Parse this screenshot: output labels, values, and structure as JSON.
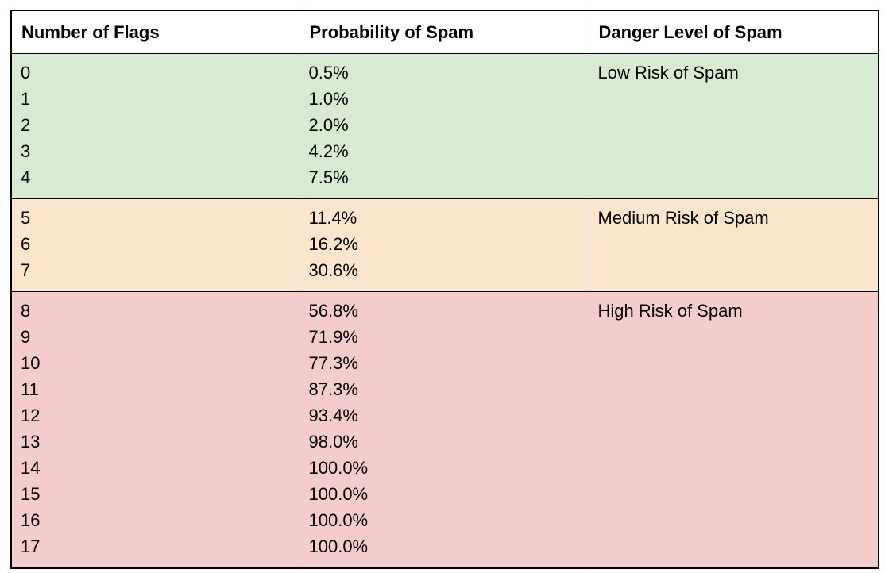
{
  "page": {
    "background_color": "#ffffff",
    "border_color": "#000000",
    "text_color": "#000000",
    "header_background": "#ffffff"
  },
  "table": {
    "headers": [
      {
        "label": "Number of Flags"
      },
      {
        "label": "Probability of Spam"
      },
      {
        "label": "Danger Level of Spam"
      }
    ],
    "groups": [
      {
        "risk_label": "Low Risk of Spam",
        "fill_color": "#d9ead3",
        "flags": [
          "0",
          "1",
          "2",
          "3",
          "4"
        ],
        "probabilities": [
          "0.5%",
          "1.0%",
          "2.0%",
          "4.2%",
          "7.5%"
        ]
      },
      {
        "risk_label": "Medium Risk of Spam",
        "fill_color": "#fce5cd",
        "flags": [
          "5",
          "6",
          "7"
        ],
        "probabilities": [
          "11.4%",
          "16.2%",
          "30.6%"
        ]
      },
      {
        "risk_label": "High Risk of Spam",
        "fill_color": "#f4cccc",
        "flags": [
          "8",
          "9",
          "10",
          "11",
          "12",
          "13",
          "14",
          "15",
          "16",
          "17"
        ],
        "probabilities": [
          "56.8%",
          "71.9%",
          "77.3%",
          "87.3%",
          "93.4%",
          "98.0%",
          "100.0%",
          "100.0%",
          "100.0%",
          "100.0%"
        ]
      }
    ]
  }
}
